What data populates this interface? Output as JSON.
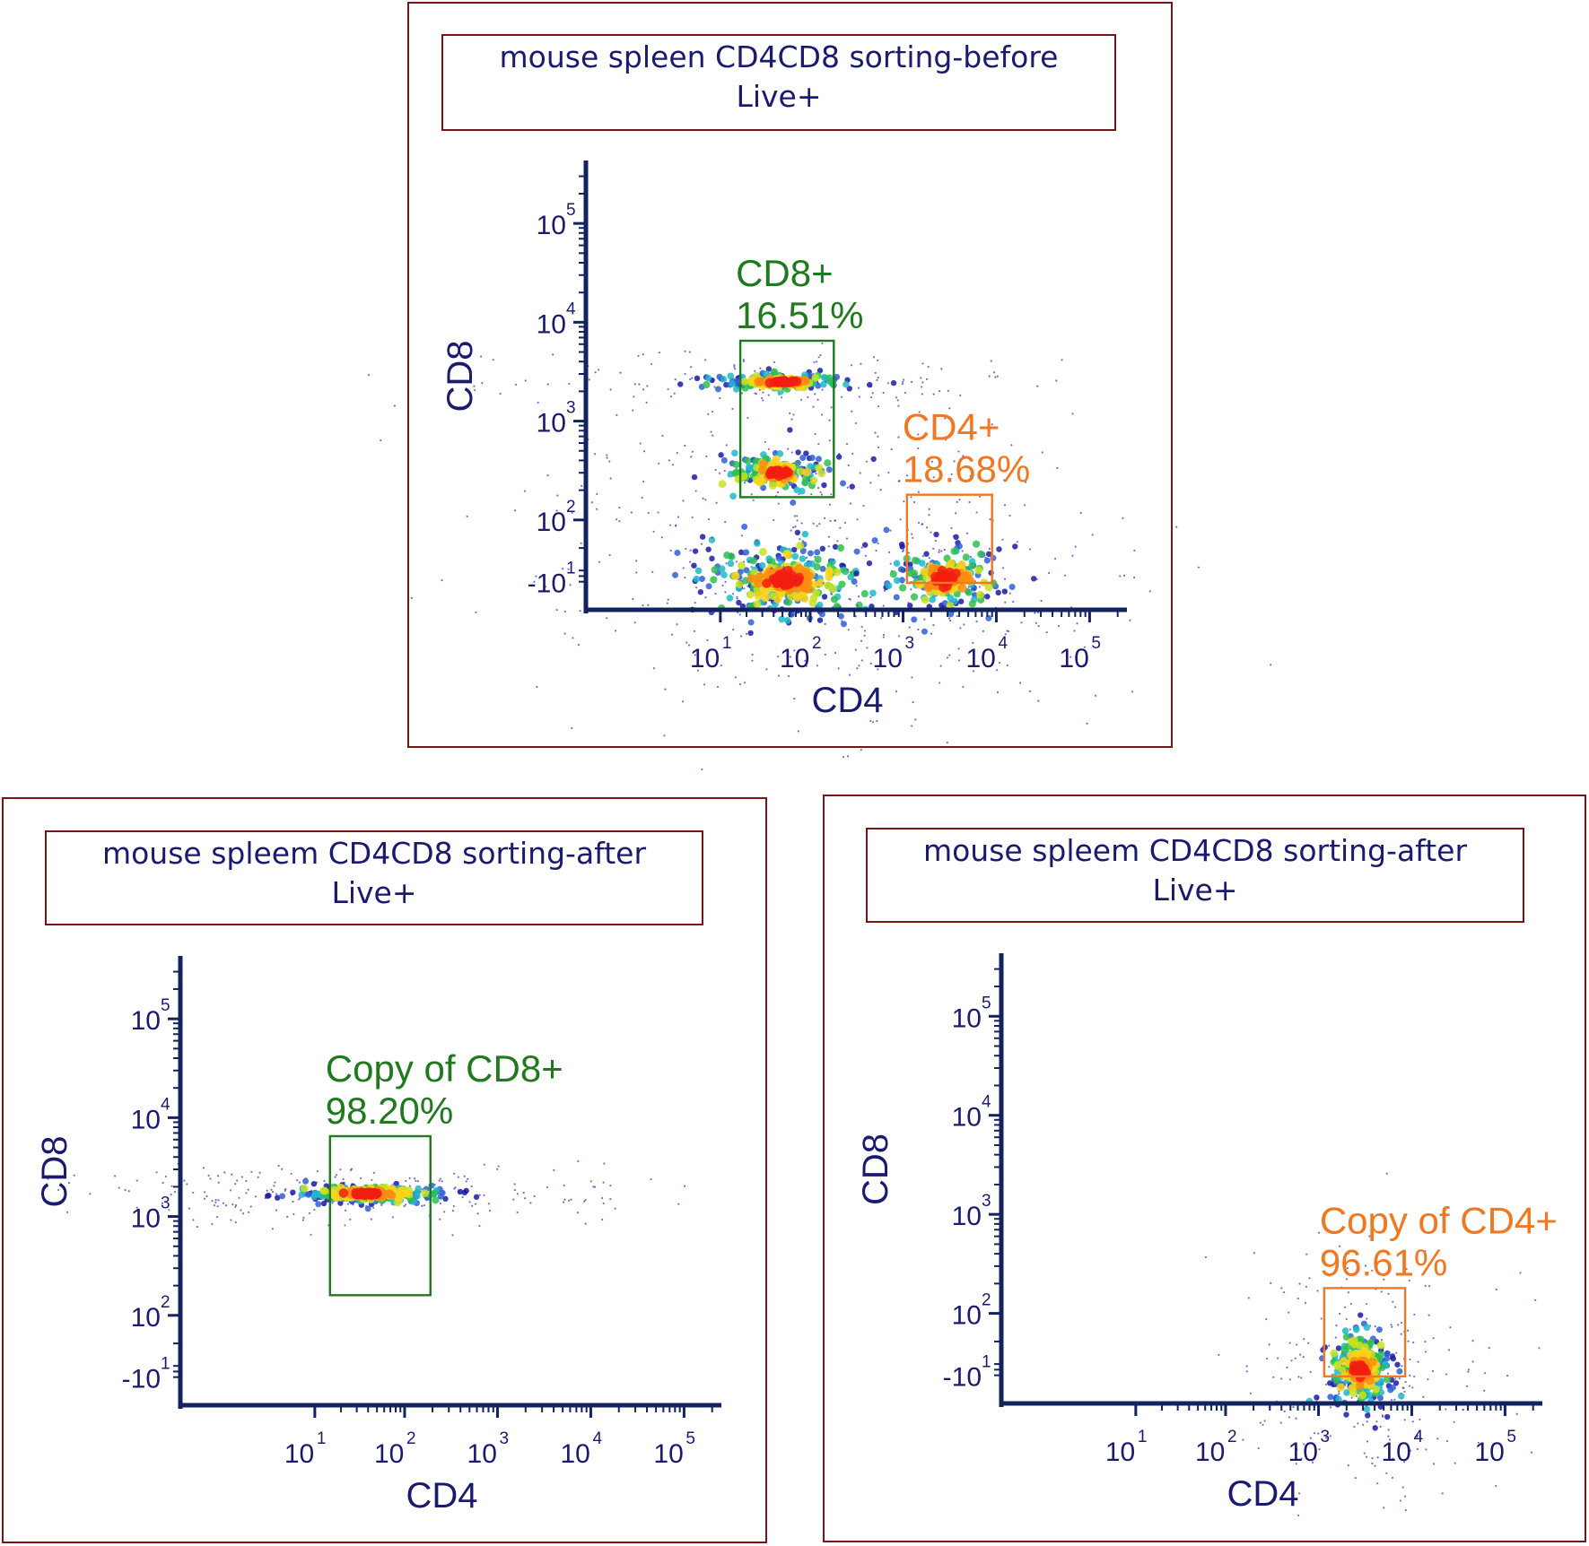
{
  "colors": {
    "panel_border": "#7b1416",
    "axis": "#13235e",
    "text": "#1a1a6e",
    "gate_cd8": "#1f7a1f",
    "gate_cd4": "#f07822"
  },
  "chart_data": [
    {
      "type": "scatter",
      "subtype": "flow-cytometry-pseudocolor",
      "title": "mouse spleen CD4CD8 sorting-before",
      "subtitle": "Live+",
      "xlabel": "CD4",
      "ylabel": "CD8",
      "x_scale": "biexponential",
      "y_scale": "biexponential",
      "x_ticks": [
        {
          "base": "10",
          "exp": "1"
        },
        {
          "base": "10",
          "exp": "2"
        },
        {
          "base": "10",
          "exp": "3"
        },
        {
          "base": "10",
          "exp": "4"
        },
        {
          "base": "10",
          "exp": "5"
        }
      ],
      "y_ticks": [
        {
          "base": "-10",
          "exp": "1"
        },
        {
          "base": "10",
          "exp": "2"
        },
        {
          "base": "10",
          "exp": "3"
        },
        {
          "base": "10",
          "exp": "4"
        },
        {
          "base": "10",
          "exp": "5"
        }
      ],
      "populations": [
        {
          "x": 55,
          "y": -8,
          "x_spread": 0.18,
          "y_spread": 0.7,
          "density": 1.0
        },
        {
          "x": 50,
          "y": 2500,
          "x_spread": 0.15,
          "y_spread": 0.08,
          "density": 0.5
        },
        {
          "x": 45,
          "y": 300,
          "x_spread": 0.14,
          "y_spread": 0.35,
          "density": 0.45
        },
        {
          "x": 2800,
          "y": -5,
          "x_spread": 0.12,
          "y_spread": 0.6,
          "density": 0.6
        }
      ],
      "gates": [
        {
          "name": "CD8+",
          "value": "16.51%",
          "color": "#1f7a1f",
          "x_range": [
            17,
            180
          ],
          "y_range": [
            170,
            6500
          ]
        },
        {
          "name": "CD4+",
          "value": "18.68%",
          "color": "#f07822",
          "x_range": [
            1100,
            9000
          ],
          "y_range": [
            -12,
            180
          ]
        }
      ]
    },
    {
      "type": "scatter",
      "subtype": "flow-cytometry-pseudocolor",
      "title": "mouse spleem CD4CD8 sorting-after",
      "subtitle": "Live+",
      "xlabel": "CD4",
      "ylabel": "CD8",
      "x_scale": "biexponential",
      "y_scale": "biexponential",
      "x_ticks": [
        {
          "base": "10",
          "exp": "1"
        },
        {
          "base": "10",
          "exp": "2"
        },
        {
          "base": "10",
          "exp": "3"
        },
        {
          "base": "10",
          "exp": "4"
        },
        {
          "base": "10",
          "exp": "5"
        }
      ],
      "y_ticks": [
        {
          "base": "-10",
          "exp": "1"
        },
        {
          "base": "10",
          "exp": "2"
        },
        {
          "base": "10",
          "exp": "3"
        },
        {
          "base": "10",
          "exp": "4"
        },
        {
          "base": "10",
          "exp": "5"
        }
      ],
      "populations": [
        {
          "x": 40,
          "y": 1700,
          "x_spread": 0.15,
          "y_spread": 0.08,
          "density": 1.0
        }
      ],
      "gates": [
        {
          "name": "Copy of CD8+",
          "value": "98.20%",
          "color": "#1f7a1f",
          "x_range": [
            15,
            190
          ],
          "y_range": [
            160,
            6500
          ]
        }
      ]
    },
    {
      "type": "scatter",
      "subtype": "flow-cytometry-pseudocolor",
      "title": "mouse spleem CD4CD8 sorting-after",
      "subtitle": "Live+",
      "xlabel": "CD4",
      "ylabel": "CD8",
      "x_scale": "biexponential",
      "y_scale": "biexponential",
      "x_ticks": [
        {
          "base": "10",
          "exp": "1"
        },
        {
          "base": "10",
          "exp": "2"
        },
        {
          "base": "10",
          "exp": "3"
        },
        {
          "base": "10",
          "exp": "4"
        },
        {
          "base": "10",
          "exp": "5"
        }
      ],
      "y_ticks": [
        {
          "base": "-10",
          "exp": "1"
        },
        {
          "base": "10",
          "exp": "2"
        },
        {
          "base": "10",
          "exp": "3"
        },
        {
          "base": "10",
          "exp": "4"
        },
        {
          "base": "10",
          "exp": "5"
        }
      ],
      "populations": [
        {
          "x": 2800,
          "y": 0,
          "x_spread": 0.07,
          "y_spread": 0.7,
          "density": 1.0
        }
      ],
      "gates": [
        {
          "name": "Copy of CD4+",
          "value": "96.61%",
          "color": "#f07822",
          "x_range": [
            1150,
            8500
          ],
          "y_range": [
            -12,
            180
          ]
        }
      ]
    }
  ]
}
